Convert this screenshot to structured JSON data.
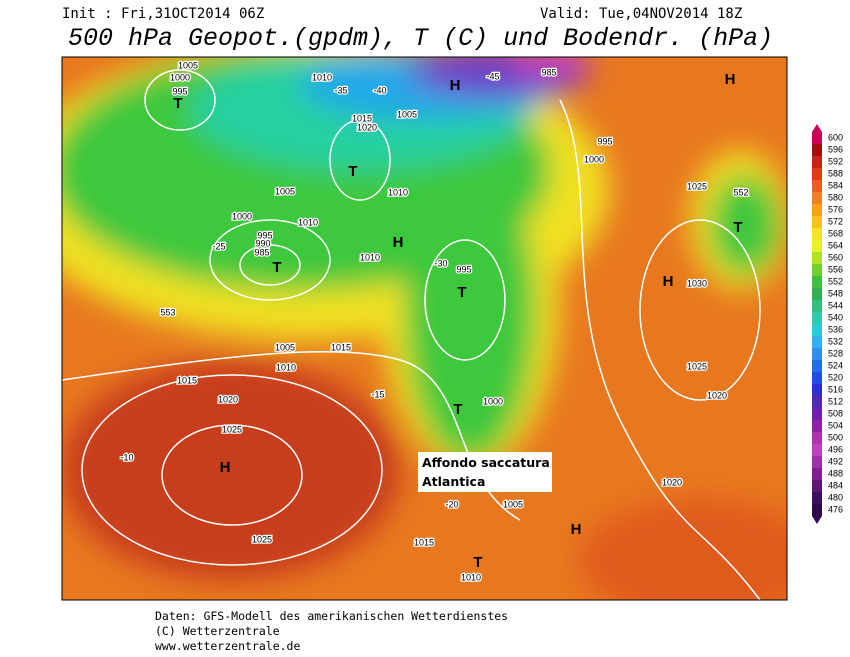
{
  "header": {
    "init": "Init : Fri,31OCT2014 06Z",
    "valid": "Valid: Tue,04NOV2014 18Z",
    "title": "500 hPa Geopot.(gpdm), T (C) und Bodendr. (hPa)"
  },
  "colorbar": {
    "ticks": [
      600,
      596,
      592,
      588,
      584,
      580,
      576,
      572,
      568,
      564,
      560,
      556,
      552,
      548,
      544,
      540,
      536,
      532,
      528,
      524,
      520,
      516,
      512,
      508,
      504,
      500,
      496,
      492,
      488,
      484,
      480,
      476
    ]
  },
  "annotation": {
    "line1": "Affondo saccatura",
    "line2": "Atlantica"
  },
  "map_labels": [
    "H",
    "1025",
    "1025",
    "1020",
    "T",
    "985",
    "990",
    "995",
    "1000",
    "1005",
    "1010",
    "T",
    "1015",
    "1020",
    "T",
    "995",
    "1000",
    "T",
    "H",
    "985",
    "995",
    "1000",
    "H",
    "1025",
    "T",
    "552",
    "H",
    "1030",
    "1025",
    "1020",
    "T",
    "995",
    "1000",
    "1005",
    "1010",
    "1005",
    "1010",
    "H",
    "1010",
    "1005",
    "1010",
    "1015",
    "1015",
    "1015",
    "1010",
    "1005",
    "1020",
    "H",
    "T",
    "553",
    "-10",
    "-15",
    "-20",
    "-25",
    "-30",
    "-35",
    "-40",
    "-45"
  ],
  "footer": {
    "line1": "Daten: GFS-Modell des amerikanischen Wetterdienstes",
    "line2": "(C) Wetterzentrale",
    "line3": "www.wetterzentrale.de"
  }
}
